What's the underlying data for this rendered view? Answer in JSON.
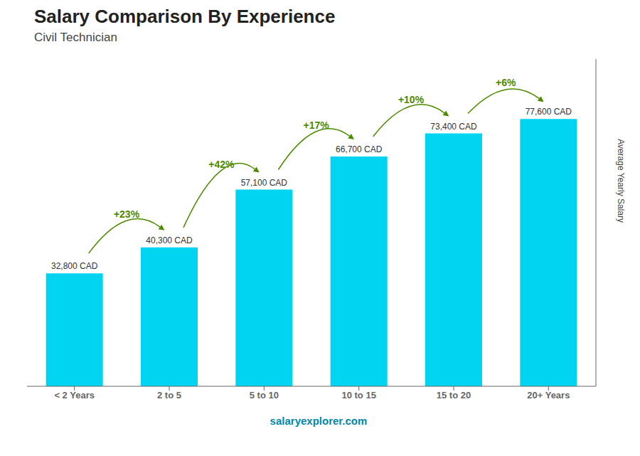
{
  "chart_data": {
    "type": "bar",
    "title": "Salary Comparison By Experience",
    "subtitle": "Civil Technician",
    "categories": [
      "< 2 Years",
      "2 to 5",
      "5 to 10",
      "10 to 15",
      "15 to 20",
      "20+ Years"
    ],
    "values": [
      32800,
      40300,
      57100,
      66700,
      73400,
      77600
    ],
    "value_labels": [
      "32,800 CAD",
      "40,300 CAD",
      "57,100 CAD",
      "66,700 CAD",
      "73,400 CAD",
      "77,600 CAD"
    ],
    "data_labels": true,
    "color": "#00d4f0",
    "ylabel": "Average Yearly Salary",
    "ylim": [
      0,
      95000
    ],
    "yticks": [],
    "tick_labels": "x",
    "grid": false,
    "annotations": [
      {
        "from": "< 2 Years",
        "to": "2 to 5",
        "text": "+23%"
      },
      {
        "from": "2 to 5",
        "to": "5 to 10",
        "text": "+42%"
      },
      {
        "from": "5 to 10",
        "to": "10 to 15",
        "text": "+17%"
      },
      {
        "from": "10 to 15",
        "to": "15 to 20",
        "text": "+10%"
      },
      {
        "from": "15 to 20",
        "to": "20+ Years",
        "text": "+6%"
      }
    ],
    "footer": "salaryexplorer.com"
  }
}
